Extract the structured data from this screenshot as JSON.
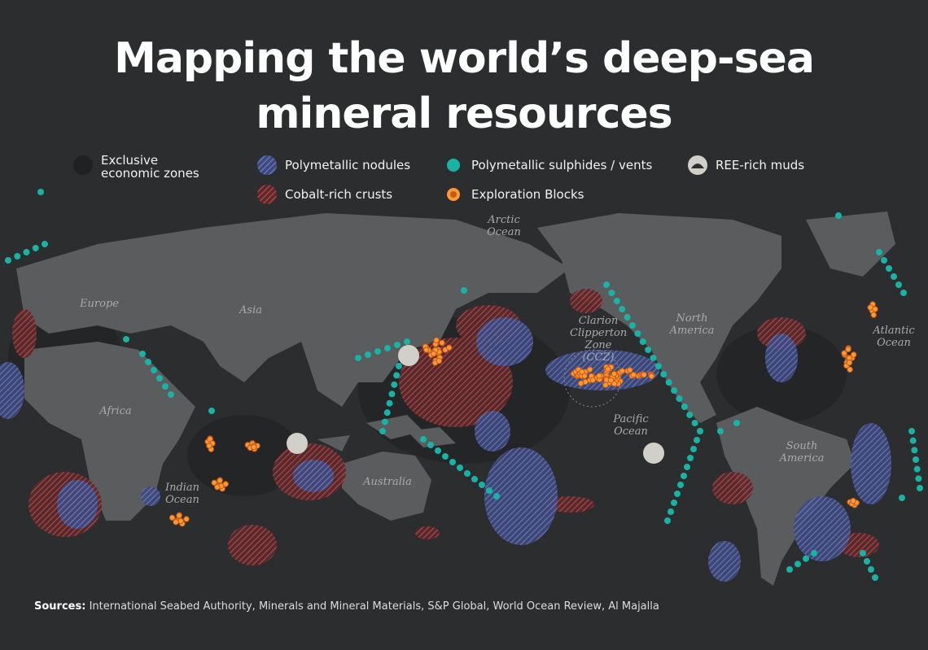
{
  "header": {
    "title": "Mapping the world’s deep-sea mineral resources"
  },
  "legend": {
    "items": [
      "Exclusive economic zones",
      "Polymetallic nodules",
      "Polymetallic sulphides / vents",
      "REE-rich muds",
      "Cobalt-rich crusts",
      "Exploration Blocks"
    ]
  },
  "map": {
    "labels": [
      "Arctic Ocean",
      "Europe",
      "Asia",
      "Africa",
      "Clarion Clipperton Zone (CCZ)",
      "North America",
      "Atlantic Ocean",
      "Pacific Ocean",
      "South America",
      "Australia",
      "Indian Ocean"
    ]
  },
  "footer": {
    "sources_label": "Sources:",
    "sources_text": "International Seabed Authority, Minerals and Mineral Materials, S&P Global, World Ocean Review, Al Majalla"
  }
}
